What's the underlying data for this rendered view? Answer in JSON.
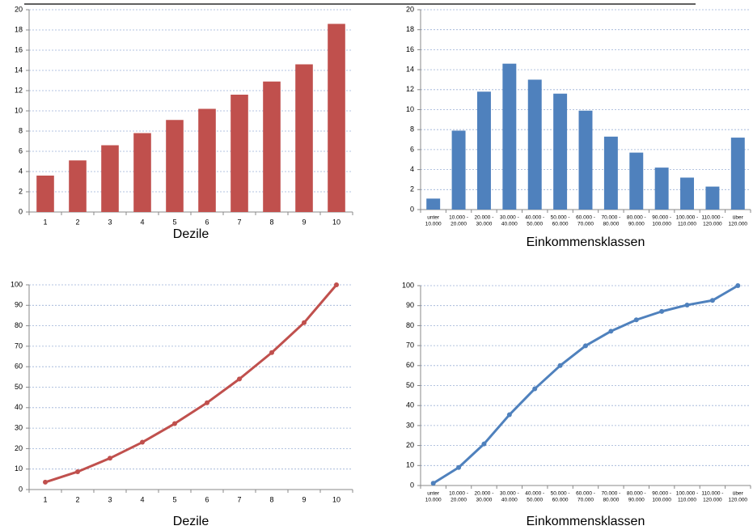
{
  "chart_data": [
    {
      "type": "bar",
      "xlabel": "Dezile",
      "color": "#c0504d",
      "grid": true,
      "categories": [
        "1",
        "2",
        "3",
        "4",
        "5",
        "6",
        "7",
        "8",
        "9",
        "10"
      ],
      "values": [
        3.6,
        5.1,
        6.6,
        7.8,
        9.1,
        10.2,
        11.6,
        12.9,
        14.6,
        18.6
      ],
      "ylim": [
        0,
        20
      ],
      "yticks": [
        0,
        2,
        4,
        6,
        8,
        10,
        12,
        14,
        16,
        18,
        20
      ]
    },
    {
      "type": "bar",
      "xlabel": "Einkommensklassen",
      "color": "#4f81bd",
      "grid": true,
      "categories": [
        [
          "unter",
          "10.000"
        ],
        [
          "10.000 -",
          "20.000"
        ],
        [
          "20.000 -",
          "30.000"
        ],
        [
          "30.000 -",
          "40.000"
        ],
        [
          "40.000 -",
          "50.000"
        ],
        [
          "50.000 -",
          "60.000"
        ],
        [
          "60.000 -",
          "70.000"
        ],
        [
          "70.000 -",
          "80.000"
        ],
        [
          "80.000 -",
          "90.000"
        ],
        [
          "90.000 -",
          "100.000"
        ],
        [
          "100.000 -",
          "110.000"
        ],
        [
          "110.000 -",
          "120.000"
        ],
        [
          "über",
          "120.000"
        ]
      ],
      "values": [
        1.1,
        7.9,
        11.8,
        14.6,
        13.0,
        11.6,
        9.9,
        7.3,
        5.7,
        4.2,
        3.2,
        2.3,
        7.2
      ],
      "ylim": [
        0,
        20
      ],
      "yticks": [
        0,
        2,
        4,
        6,
        8,
        10,
        12,
        14,
        16,
        18,
        20
      ]
    },
    {
      "type": "line",
      "xlabel": "Dezile",
      "color": "#c0504d",
      "grid": true,
      "categories": [
        "1",
        "2",
        "3",
        "4",
        "5",
        "6",
        "7",
        "8",
        "9",
        "10"
      ],
      "values": [
        3.6,
        8.7,
        15.3,
        23.1,
        32.2,
        42.4,
        54.0,
        66.9,
        81.5,
        100
      ],
      "ylim": [
        0,
        100
      ],
      "yticks": [
        0,
        10,
        20,
        30,
        40,
        50,
        60,
        70,
        80,
        90,
        100
      ]
    },
    {
      "type": "line",
      "xlabel": "Einkommensklassen",
      "color": "#4f81bd",
      "grid": true,
      "categories": [
        [
          "unter",
          "10.000"
        ],
        [
          "10.000 -",
          "20.000"
        ],
        [
          "20.000 -",
          "30.000"
        ],
        [
          "30.000 -",
          "40.000"
        ],
        [
          "40.000 -",
          "50.000"
        ],
        [
          "50.000 -",
          "60.000"
        ],
        [
          "60.000 -",
          "70.000"
        ],
        [
          "70.000 -",
          "80.000"
        ],
        [
          "80.000 -",
          "90.000"
        ],
        [
          "90.000 -",
          "100.000"
        ],
        [
          "100.000 -",
          "110.000"
        ],
        [
          "110.000 -",
          "120.000"
        ],
        [
          "über",
          "120.000"
        ]
      ],
      "values": [
        1.1,
        9.0,
        20.8,
        35.4,
        48.4,
        60.0,
        69.9,
        77.2,
        82.9,
        87.1,
        90.3,
        92.6,
        100
      ],
      "ylim": [
        0,
        100
      ],
      "yticks": [
        0,
        10,
        20,
        30,
        40,
        50,
        60,
        70,
        80,
        90,
        100
      ]
    }
  ]
}
